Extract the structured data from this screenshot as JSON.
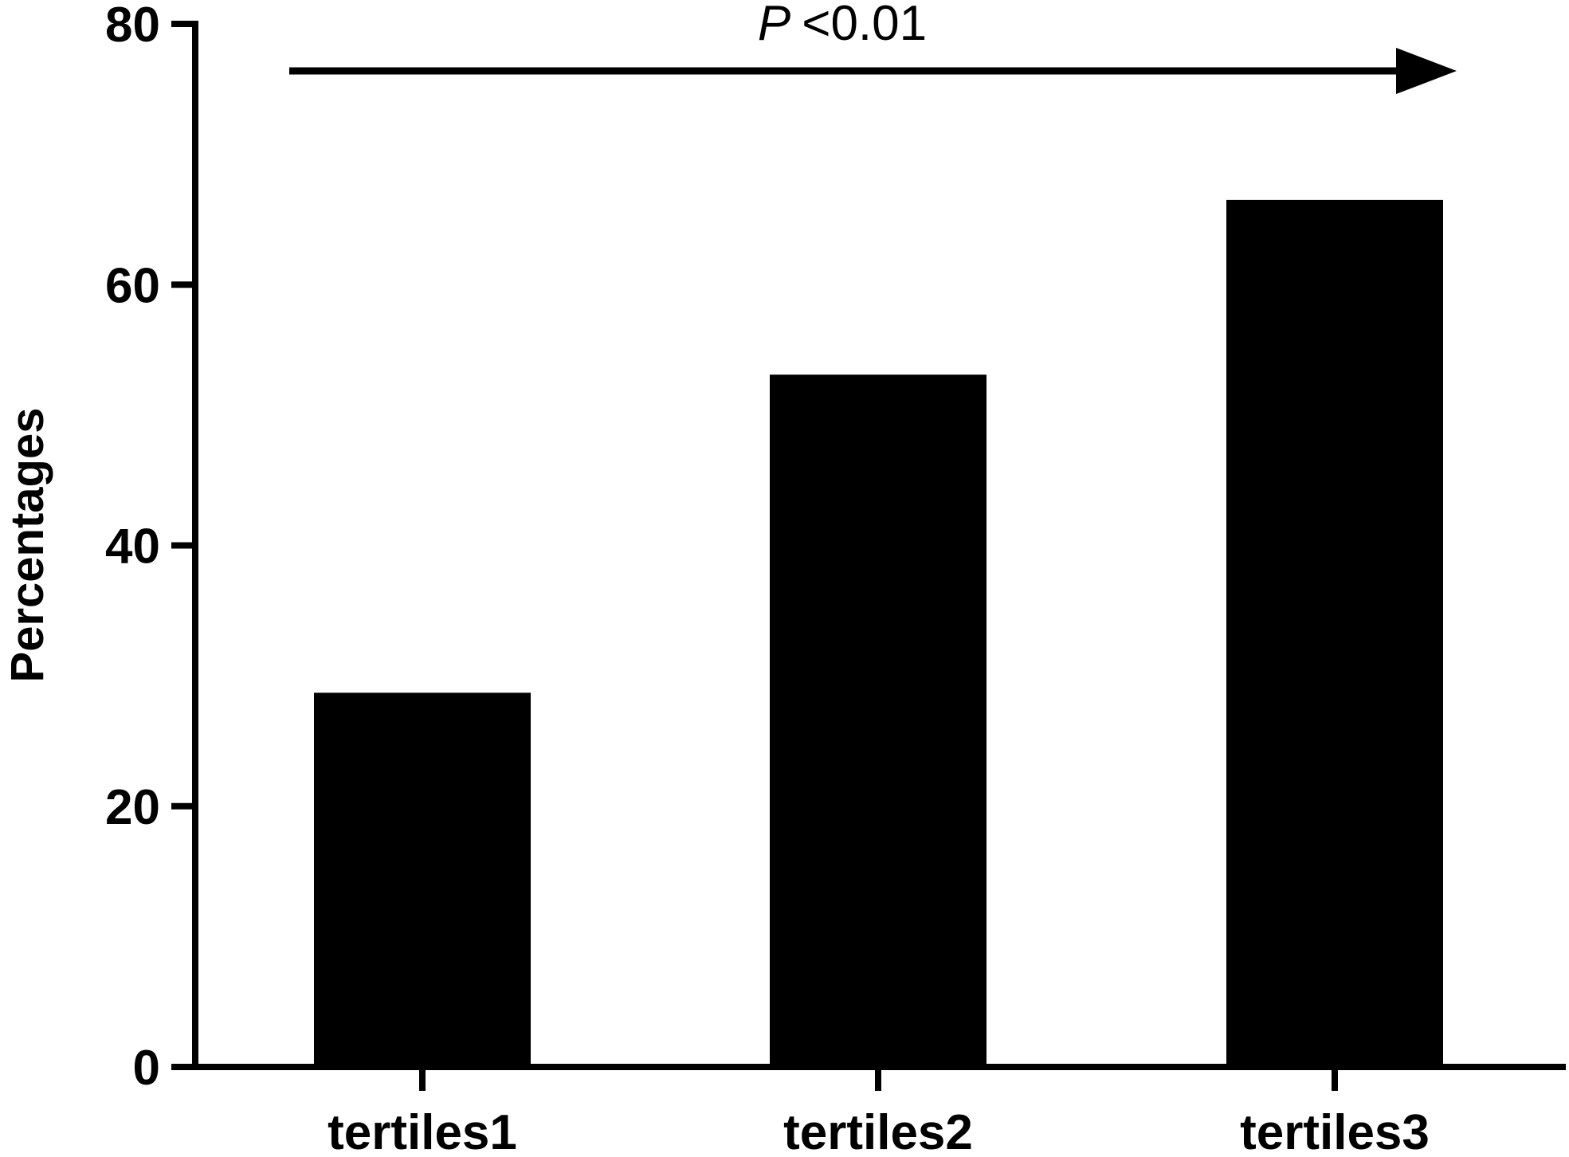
{
  "chart_data": {
    "type": "bar",
    "categories": [
      "tertiles1",
      "tertiles2",
      "tertiles3"
    ],
    "values": [
      28.7,
      53.1,
      66.5
    ],
    "title": "",
    "xlabel": "",
    "ylabel": "Percentages",
    "ylim": [
      0,
      80
    ],
    "yticks": [
      "0",
      "20",
      "40",
      "60",
      "80"
    ],
    "grid": false,
    "bar_color": "#000000",
    "annotation": {
      "p_symbol": "P",
      "p_text": "<0.01"
    }
  }
}
